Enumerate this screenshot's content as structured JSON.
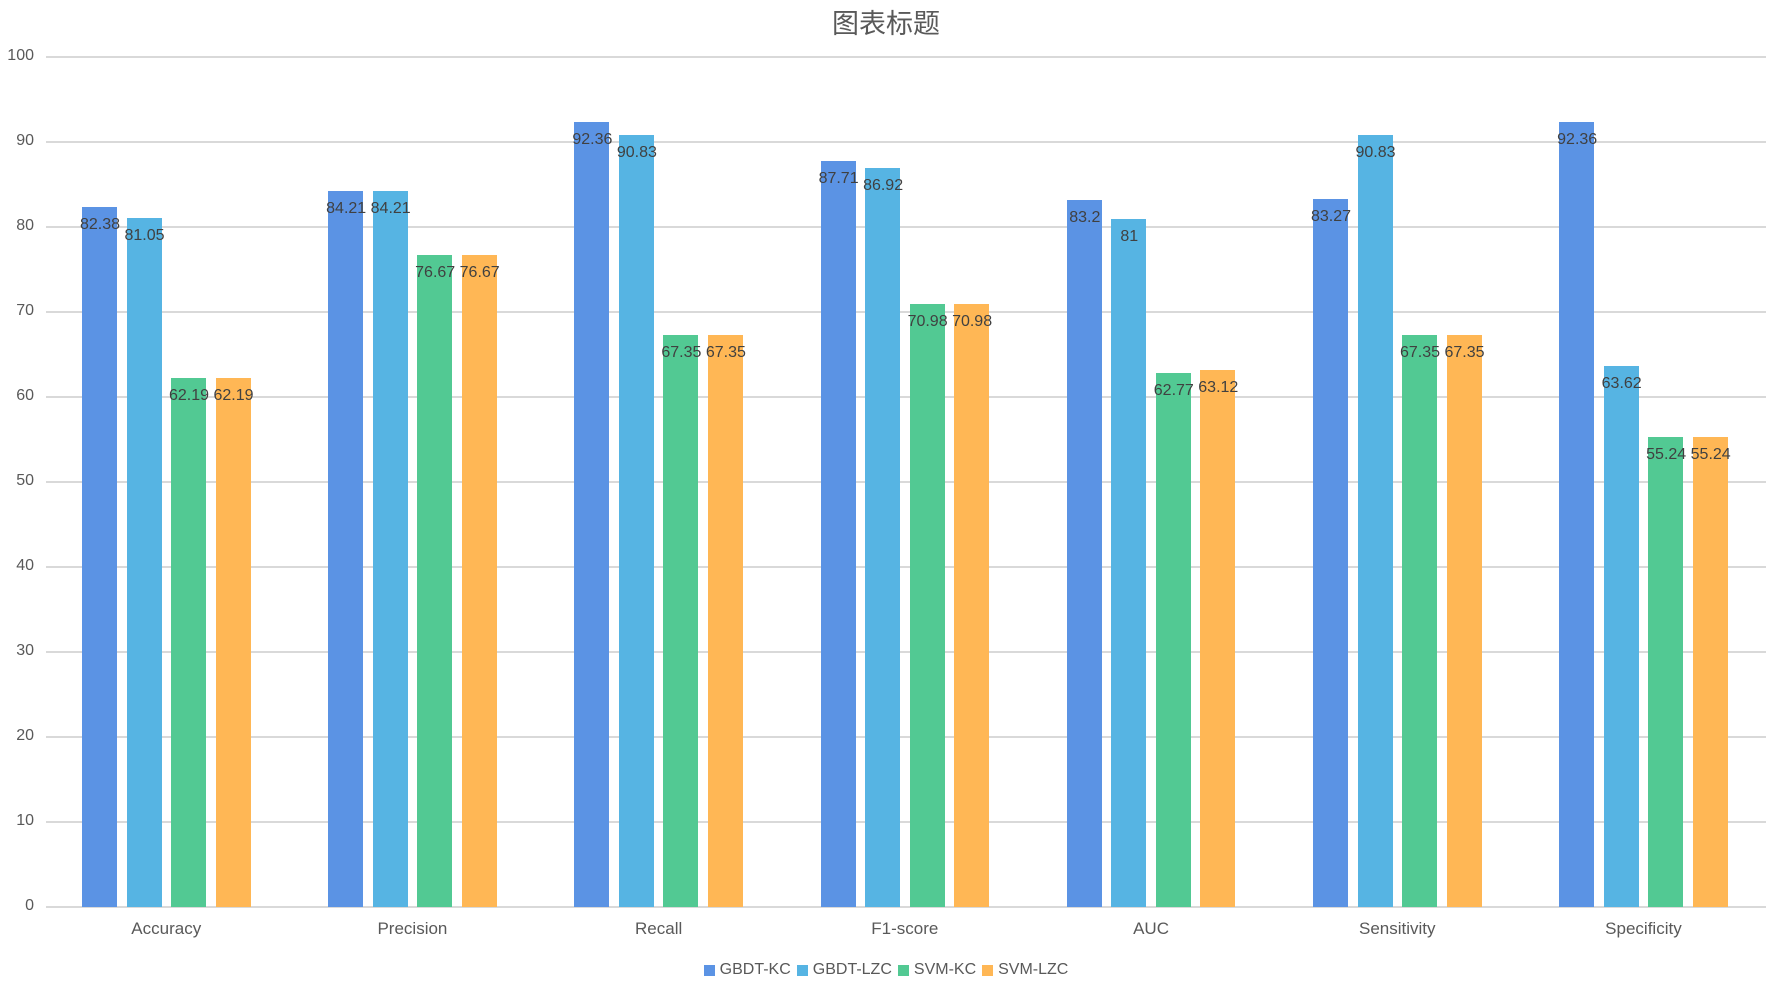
{
  "chart_data": {
    "type": "bar",
    "title": "图表标题",
    "xlabel": "",
    "ylabel": "",
    "ylim": [
      0,
      100
    ],
    "yticks": [
      0,
      10,
      20,
      30,
      40,
      50,
      60,
      70,
      80,
      90,
      100
    ],
    "grid": true,
    "legend_position": "bottom",
    "categories": [
      "Accuracy",
      "Precision",
      "Recall",
      "F1-score",
      "AUC",
      "Sensitivity",
      "Specificity"
    ],
    "series": [
      {
        "name": "GBDT-KC",
        "color": "#5b93e4",
        "values": [
          82.38,
          84.21,
          92.36,
          87.71,
          83.2,
          83.27,
          92.36
        ]
      },
      {
        "name": "GBDT-LZC",
        "color": "#56b4e3",
        "values": [
          81.05,
          84.21,
          90.83,
          86.92,
          81,
          90.83,
          63.62
        ]
      },
      {
        "name": "SVM-KC",
        "color": "#52c993",
        "values": [
          62.19,
          76.67,
          67.35,
          70.98,
          62.77,
          67.35,
          55.24
        ]
      },
      {
        "name": "SVM-LZC",
        "color": "#ffb755",
        "values": [
          62.19,
          76.67,
          67.35,
          70.98,
          63.12,
          67.35,
          55.24
        ]
      }
    ]
  }
}
